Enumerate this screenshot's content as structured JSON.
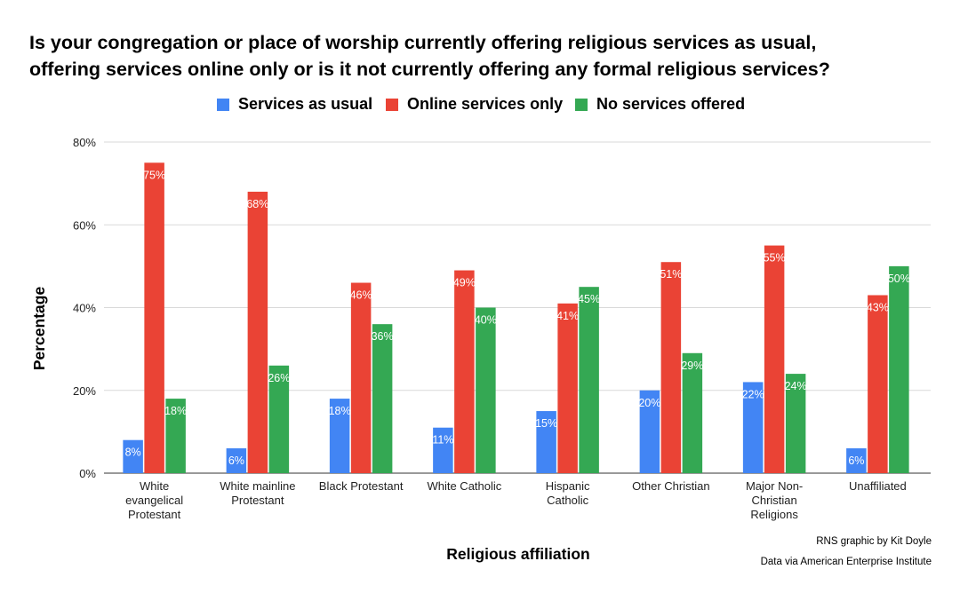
{
  "title_lines": [
    "Is your congregation or place of worship currently offering religious services as usual,",
    "offering services online only or is it not currently offering any formal religious services?"
  ],
  "credits": {
    "graphic": "RNS graphic by Kit Doyle",
    "source": "Data via American Enterprise Institute"
  },
  "chart_data": {
    "type": "bar",
    "categories": [
      [
        "White",
        "evangelical",
        "Protestant"
      ],
      [
        "White mainline",
        "Protestant"
      ],
      [
        "Black Protestant"
      ],
      [
        "White Catholic"
      ],
      [
        "Hispanic",
        "Catholic"
      ],
      [
        "Other Christian"
      ],
      [
        "Major Non-",
        "Christian",
        "Religions"
      ],
      [
        "Unaffiliated"
      ]
    ],
    "series": [
      {
        "name": "Services as usual",
        "color": "#4285f4",
        "values": [
          8,
          6,
          18,
          11,
          15,
          20,
          22,
          6
        ]
      },
      {
        "name": "Online services only",
        "color": "#ea4335",
        "values": [
          75,
          68,
          46,
          49,
          41,
          51,
          55,
          43
        ]
      },
      {
        "name": "No services offered",
        "color": "#34a853",
        "values": [
          18,
          26,
          36,
          40,
          45,
          29,
          24,
          50
        ]
      }
    ],
    "xlabel": "Religious affiliation",
    "ylabel": "Percentage",
    "ylim": [
      0,
      80
    ],
    "yticks": [
      0,
      20,
      40,
      60,
      80
    ],
    "tick_suffix": "%",
    "value_suffix": "%",
    "grid": true,
    "legend_position": "top"
  }
}
